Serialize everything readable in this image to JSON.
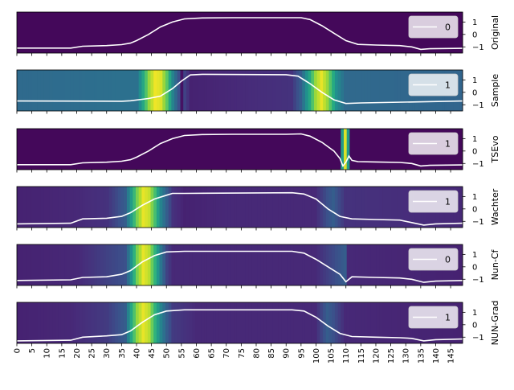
{
  "colormap": "viridis",
  "line_color": "#ffffff",
  "chart_data": [
    {
      "type": "heatmap",
      "ylabel": "Original",
      "legend": "0",
      "yticks": [
        1,
        0,
        -1
      ],
      "ylim": [
        -1.5,
        1.8
      ],
      "heat": [
        [
          0,
          0.02
        ],
        [
          149,
          0.02
        ]
      ],
      "line": [
        [
          0,
          -1.1
        ],
        [
          18,
          -1.1
        ],
        [
          22,
          -0.95
        ],
        [
          30,
          -0.9
        ],
        [
          35,
          -0.82
        ],
        [
          38,
          -0.7
        ],
        [
          40,
          -0.5
        ],
        [
          44,
          0
        ],
        [
          48,
          0.6
        ],
        [
          52,
          1.0
        ],
        [
          56,
          1.25
        ],
        [
          62,
          1.33
        ],
        [
          72,
          1.35
        ],
        [
          90,
          1.35
        ],
        [
          95,
          1.35
        ],
        [
          98,
          1.2
        ],
        [
          102,
          0.7
        ],
        [
          106,
          0.1
        ],
        [
          110,
          -0.5
        ],
        [
          114,
          -0.8
        ],
        [
          120,
          -0.85
        ],
        [
          128,
          -0.9
        ],
        [
          132,
          -1.0
        ],
        [
          135,
          -1.2
        ],
        [
          138,
          -1.15
        ],
        [
          149,
          -1.12
        ]
      ]
    },
    {
      "type": "heatmap",
      "ylabel": "Sample",
      "legend": "1",
      "yticks": [
        1,
        0,
        -1
      ],
      "ylim": [
        -1.5,
        1.8
      ],
      "heat": [
        [
          0,
          0.35
        ],
        [
          40,
          0.38
        ],
        [
          42,
          0.6
        ],
        [
          44,
          0.85
        ],
        [
          46,
          0.98
        ],
        [
          48,
          0.95
        ],
        [
          50,
          0.75
        ],
        [
          52,
          0.45
        ],
        [
          54,
          0.25
        ],
        [
          55,
          0.05
        ],
        [
          56,
          0.2
        ],
        [
          58,
          0.1
        ],
        [
          92,
          0.15
        ],
        [
          95,
          0.3
        ],
        [
          98,
          0.6
        ],
        [
          100,
          0.85
        ],
        [
          102,
          0.97
        ],
        [
          104,
          0.85
        ],
        [
          107,
          0.5
        ],
        [
          110,
          0.35
        ],
        [
          149,
          0.33
        ]
      ],
      "line": [
        [
          0,
          -0.7
        ],
        [
          35,
          -0.72
        ],
        [
          38,
          -0.68
        ],
        [
          44,
          -0.5
        ],
        [
          48,
          -0.3
        ],
        [
          52,
          0.3
        ],
        [
          55,
          0.9
        ],
        [
          58,
          1.4
        ],
        [
          62,
          1.45
        ],
        [
          90,
          1.42
        ],
        [
          94,
          1.3
        ],
        [
          98,
          0.7
        ],
        [
          102,
          0
        ],
        [
          106,
          -0.6
        ],
        [
          110,
          -0.9
        ],
        [
          115,
          -0.85
        ],
        [
          149,
          -0.7
        ]
      ]
    },
    {
      "type": "heatmap",
      "ylabel": "TSEvo",
      "legend": "1",
      "yticks": [
        1,
        0,
        -1
      ],
      "ylim": [
        -1.5,
        1.8
      ],
      "heat": [
        [
          0,
          0.02
        ],
        [
          108,
          0.02
        ],
        [
          109,
          0.55
        ],
        [
          110,
          0.95
        ],
        [
          111,
          0.55
        ],
        [
          112,
          0.02
        ],
        [
          149,
          0.02
        ]
      ],
      "line": [
        [
          0,
          -1.1
        ],
        [
          18,
          -1.1
        ],
        [
          22,
          -0.95
        ],
        [
          30,
          -0.9
        ],
        [
          35,
          -0.82
        ],
        [
          38,
          -0.7
        ],
        [
          40,
          -0.5
        ],
        [
          44,
          0
        ],
        [
          48,
          0.6
        ],
        [
          52,
          1.0
        ],
        [
          56,
          1.25
        ],
        [
          62,
          1.33
        ],
        [
          72,
          1.35
        ],
        [
          90,
          1.35
        ],
        [
          95,
          1.38
        ],
        [
          98,
          1.2
        ],
        [
          102,
          0.7
        ],
        [
          106,
          0
        ],
        [
          108,
          -0.6
        ],
        [
          109,
          -1.2
        ],
        [
          110,
          -0.9
        ],
        [
          111,
          -0.4
        ],
        [
          112,
          -0.75
        ],
        [
          114,
          -0.85
        ],
        [
          120,
          -0.88
        ],
        [
          128,
          -0.92
        ],
        [
          132,
          -1.0
        ],
        [
          135,
          -1.2
        ],
        [
          138,
          -1.15
        ],
        [
          149,
          -1.12
        ]
      ]
    },
    {
      "type": "heatmap",
      "ylabel": "Wachter",
      "legend": "1",
      "yticks": [
        1,
        0,
        -1
      ],
      "ylim": [
        -1.5,
        1.8
      ],
      "heat": [
        [
          0,
          0.1
        ],
        [
          20,
          0.12
        ],
        [
          30,
          0.15
        ],
        [
          36,
          0.3
        ],
        [
          38,
          0.55
        ],
        [
          40,
          0.8
        ],
        [
          42,
          0.97
        ],
        [
          44,
          0.92
        ],
        [
          46,
          0.7
        ],
        [
          48,
          0.45
        ],
        [
          50,
          0.3
        ],
        [
          52,
          0.15
        ],
        [
          56,
          0.1
        ],
        [
          70,
          0.12
        ],
        [
          100,
          0.12
        ],
        [
          104,
          0.25
        ],
        [
          106,
          0.3
        ],
        [
          110,
          0.15
        ],
        [
          149,
          0.12
        ]
      ],
      "line": [
        [
          0,
          -1.2
        ],
        [
          18,
          -1.15
        ],
        [
          22,
          -0.8
        ],
        [
          30,
          -0.75
        ],
        [
          35,
          -0.6
        ],
        [
          38,
          -0.3
        ],
        [
          42,
          0.3
        ],
        [
          46,
          0.8
        ],
        [
          50,
          1.1
        ],
        [
          52,
          1.25
        ],
        [
          56,
          1.25
        ],
        [
          92,
          1.3
        ],
        [
          96,
          1.2
        ],
        [
          100,
          0.8
        ],
        [
          104,
          0
        ],
        [
          108,
          -0.6
        ],
        [
          112,
          -0.8
        ],
        [
          120,
          -0.85
        ],
        [
          128,
          -0.9
        ],
        [
          132,
          -1.1
        ],
        [
          136,
          -1.3
        ],
        [
          140,
          -1.2
        ],
        [
          149,
          -1.15
        ]
      ]
    },
    {
      "type": "heatmap",
      "ylabel": "Nun-Cf",
      "legend": "0",
      "yticks": [
        1,
        0,
        -1
      ],
      "ylim": [
        -1.5,
        1.8
      ],
      "heat": [
        [
          0,
          0.1
        ],
        [
          20,
          0.12
        ],
        [
          36,
          0.25
        ],
        [
          38,
          0.5
        ],
        [
          40,
          0.8
        ],
        [
          42,
          0.97
        ],
        [
          44,
          0.9
        ],
        [
          46,
          0.65
        ],
        [
          48,
          0.4
        ],
        [
          50,
          0.2
        ],
        [
          52,
          0.12
        ],
        [
          100,
          0.12
        ],
        [
          110,
          0.3
        ],
        [
          111,
          0.12
        ],
        [
          149,
          0.1
        ]
      ],
      "line": [
        [
          0,
          -1.1
        ],
        [
          18,
          -1.05
        ],
        [
          22,
          -0.85
        ],
        [
          30,
          -0.8
        ],
        [
          35,
          -0.6
        ],
        [
          38,
          -0.3
        ],
        [
          42,
          0.4
        ],
        [
          46,
          0.9
        ],
        [
          50,
          1.2
        ],
        [
          56,
          1.25
        ],
        [
          92,
          1.25
        ],
        [
          96,
          1.1
        ],
        [
          100,
          0.6
        ],
        [
          104,
          0
        ],
        [
          108,
          -0.6
        ],
        [
          110,
          -1.2
        ],
        [
          112,
          -0.8
        ],
        [
          120,
          -0.85
        ],
        [
          128,
          -0.9
        ],
        [
          132,
          -1.0
        ],
        [
          136,
          -1.25
        ],
        [
          140,
          -1.15
        ],
        [
          149,
          -1.1
        ]
      ]
    },
    {
      "type": "heatmap",
      "ylabel": "NUN-Grad",
      "legend": "1",
      "yticks": [
        1,
        0,
        -1
      ],
      "ylim": [
        -1.5,
        1.8
      ],
      "heat": [
        [
          0,
          0.1
        ],
        [
          18,
          0.12
        ],
        [
          30,
          0.18
        ],
        [
          36,
          0.3
        ],
        [
          38,
          0.6
        ],
        [
          40,
          0.85
        ],
        [
          42,
          0.97
        ],
        [
          44,
          0.9
        ],
        [
          46,
          0.65
        ],
        [
          48,
          0.45
        ],
        [
          50,
          0.3
        ],
        [
          52,
          0.18
        ],
        [
          60,
          0.12
        ],
        [
          100,
          0.12
        ],
        [
          104,
          0.3
        ],
        [
          106,
          0.25
        ],
        [
          110,
          0.12
        ],
        [
          149,
          0.1
        ]
      ],
      "line": [
        [
          0,
          -1.3
        ],
        [
          18,
          -1.25
        ],
        [
          22,
          -1.0
        ],
        [
          30,
          -0.9
        ],
        [
          35,
          -0.8
        ],
        [
          38,
          -0.5
        ],
        [
          42,
          0.2
        ],
        [
          46,
          0.8
        ],
        [
          50,
          1.1
        ],
        [
          56,
          1.2
        ],
        [
          70,
          1.2
        ],
        [
          92,
          1.2
        ],
        [
          96,
          1.1
        ],
        [
          100,
          0.6
        ],
        [
          104,
          -0.1
        ],
        [
          108,
          -0.7
        ],
        [
          112,
          -0.95
        ],
        [
          120,
          -1.0
        ],
        [
          128,
          -1.05
        ],
        [
          132,
          -1.1
        ],
        [
          136,
          -1.3
        ],
        [
          140,
          -1.2
        ],
        [
          149,
          -1.15
        ]
      ]
    }
  ],
  "x_axis": {
    "ticks": [
      "0",
      "5",
      "10",
      "15",
      "20",
      "25",
      "30",
      "35",
      "40",
      "45",
      "50",
      "55",
      "60",
      "65",
      "70",
      "75",
      "80",
      "85",
      "90",
      "95",
      "100",
      "105",
      "110",
      "115",
      "120",
      "125",
      "130",
      "135",
      "140",
      "145"
    ]
  }
}
